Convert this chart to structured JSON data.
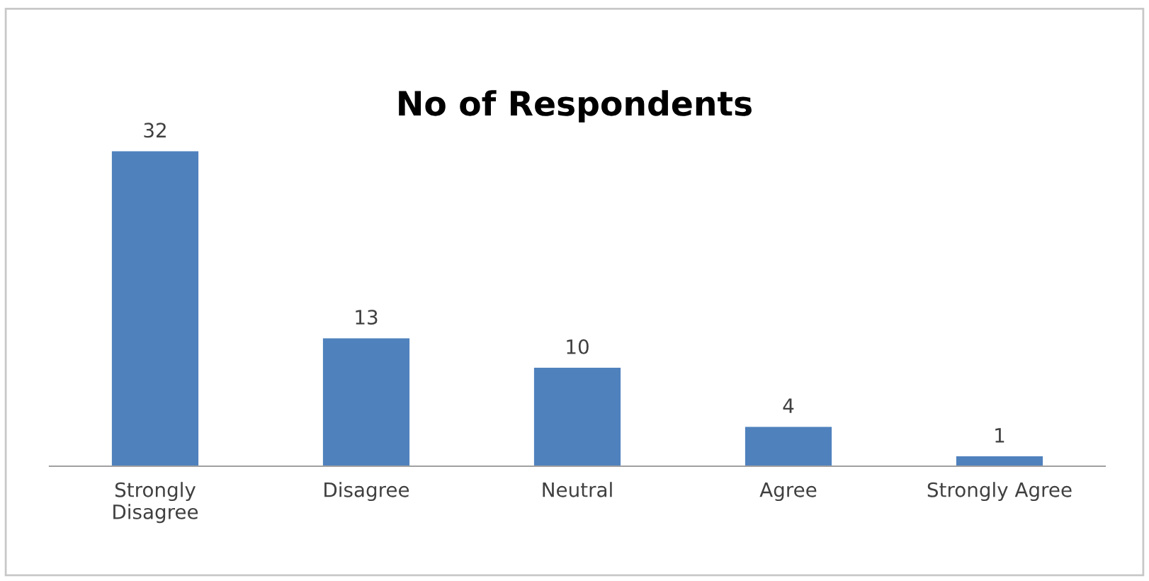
{
  "chart_data": {
    "type": "bar",
    "title": "No of Respondents",
    "categories": [
      "Strongly\nDisagree",
      "Disagree",
      "Neutral",
      "Agree",
      "Strongly Agree"
    ],
    "values": [
      32,
      13,
      10,
      4,
      1
    ],
    "color": "#4f81bd",
    "data_labels": true,
    "grid": false,
    "legend": false
  }
}
